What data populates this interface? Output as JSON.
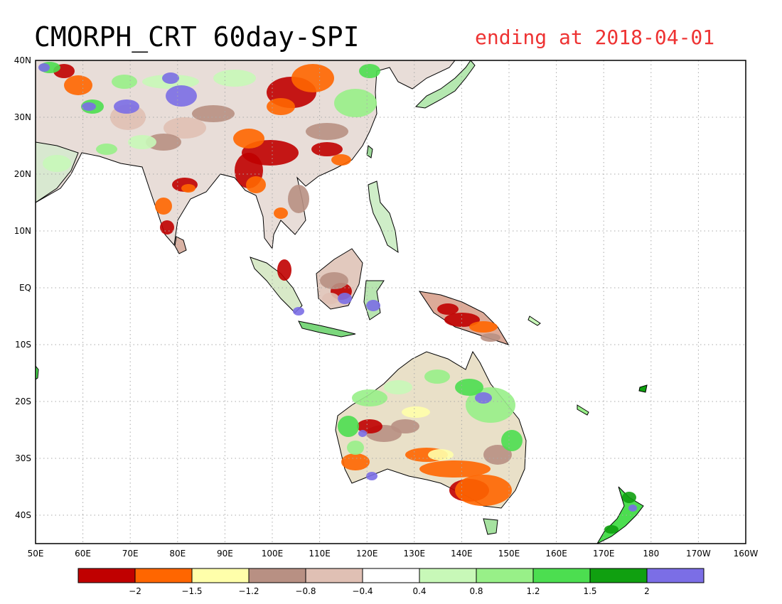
{
  "title": "CMORPH_CRT 60day-SPI",
  "subtitle": "ending at 2018-04-01",
  "lon_labels": [
    "50E",
    "60E",
    "70E",
    "80E",
    "90E",
    "100E",
    "110E",
    "120E",
    "130E",
    "140E",
    "150E",
    "160E",
    "170E",
    "180",
    "170W",
    "160W"
  ],
  "lat_labels": [
    "40N",
    "30N",
    "20N",
    "10N",
    "EQ",
    "10S",
    "20S",
    "30S",
    "40S"
  ],
  "colorbar": {
    "colors": [
      "#c00000",
      "#ff6600",
      "#ffffaa",
      "#b89083",
      "#e0c0b4",
      "#ffffff",
      "#c8f8b8",
      "#98f088",
      "#4cde50",
      "#10a010",
      "#7b6ee6"
    ],
    "tick_labels": [
      "−2",
      "−1.5",
      "−1.2",
      "−0.8",
      "−0.4",
      "0.4",
      "0.8",
      "1.2",
      "1.5",
      "2"
    ]
  },
  "colors": {
    "land_outline": "#000000",
    "grid": "#aaaaaa",
    "title": "#000000",
    "subtitle": "#ee3333"
  }
}
